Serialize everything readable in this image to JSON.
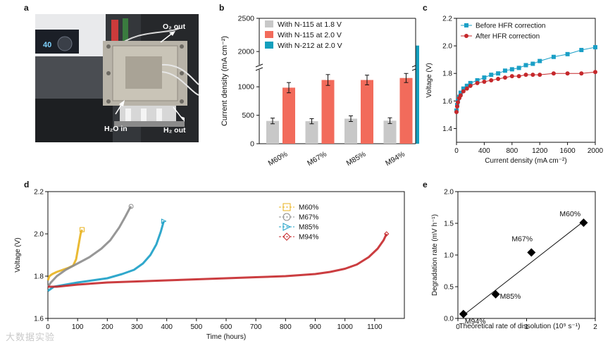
{
  "panels": {
    "a": {
      "letter": "a",
      "labels": {
        "o2": "O₂ out",
        "h2o": "H₂O in",
        "h2": "H₂ out"
      },
      "display": "40"
    },
    "b": {
      "letter": "b"
    },
    "c": {
      "letter": "c"
    },
    "d": {
      "letter": "d"
    },
    "e": {
      "letter": "e"
    }
  },
  "watermark": "大数据实验",
  "chart_data": [
    {
      "panel": "b",
      "type": "bar",
      "categories": [
        "M60%",
        "M67%",
        "M85%",
        "M94%"
      ],
      "series": [
        {
          "name": "With N-115 at 1.8 V",
          "color": "#c8c8c8",
          "values": [
            400,
            395,
            440,
            405
          ],
          "errors": [
            50,
            45,
            50,
            50
          ]
        },
        {
          "name": "With N-115 at 2.0 V",
          "color": "#f26b5b",
          "values": [
            985,
            1120,
            1120,
            1155
          ],
          "errors": [
            90,
            95,
            85,
            80
          ]
        },
        {
          "name": "With N-212 at 2.0 V",
          "color": "#149fbd",
          "values": [
            null,
            null,
            null,
            2090
          ],
          "errors": [
            null,
            null,
            null,
            110
          ]
        }
      ],
      "xlabel": "",
      "ylabel": "Current density (mA cm⁻²)",
      "yticks": [
        0,
        500,
        1000,
        1500,
        2000,
        2500
      ],
      "ylim": [
        0,
        2500
      ],
      "axis_break": [
        1300,
        1800
      ],
      "legend": "top-left"
    },
    {
      "panel": "c",
      "type": "line",
      "xlabel": "Current density (mA cm⁻²)",
      "ylabel": "Voltage (V)",
      "xlim": [
        0,
        2000
      ],
      "ylim": [
        1.3,
        2.2
      ],
      "xticks": [
        0,
        400,
        800,
        1200,
        1600,
        2000
      ],
      "yticks": [
        1.4,
        1.6,
        1.8,
        2.0,
        2.2
      ],
      "legend": "top-left",
      "series": [
        {
          "name": "Before HFR correction",
          "color": "#1a9fc6",
          "marker": "square",
          "x": [
            0,
            10,
            20,
            40,
            60,
            100,
            150,
            200,
            300,
            400,
            500,
            600,
            700,
            800,
            900,
            1000,
            1100,
            1200,
            1400,
            1600,
            1800,
            2000
          ],
          "y": [
            1.53,
            1.57,
            1.6,
            1.63,
            1.66,
            1.69,
            1.71,
            1.73,
            1.75,
            1.77,
            1.79,
            1.8,
            1.82,
            1.83,
            1.84,
            1.86,
            1.87,
            1.89,
            1.92,
            1.94,
            1.97,
            1.99
          ]
        },
        {
          "name": "After HFR correction",
          "color": "#c5282b",
          "marker": "circle",
          "x": [
            0,
            10,
            20,
            40,
            60,
            100,
            150,
            200,
            300,
            400,
            500,
            600,
            700,
            800,
            900,
            1000,
            1100,
            1200,
            1400,
            1600,
            1800,
            2000
          ],
          "y": [
            1.52,
            1.56,
            1.59,
            1.62,
            1.64,
            1.67,
            1.69,
            1.71,
            1.73,
            1.74,
            1.75,
            1.76,
            1.77,
            1.78,
            1.78,
            1.79,
            1.79,
            1.79,
            1.8,
            1.8,
            1.8,
            1.81
          ]
        }
      ]
    },
    {
      "panel": "d",
      "type": "line",
      "xlabel": "Time (hours)",
      "ylabel": "Voltage (V)",
      "xlim": [
        0,
        1200
      ],
      "ylim": [
        1.6,
        2.2
      ],
      "xticks": [
        0,
        100,
        200,
        300,
        400,
        500,
        600,
        700,
        800,
        900,
        1000,
        1100
      ],
      "yticks": [
        1.6,
        1.8,
        2.0,
        2.2
      ],
      "legend": "top-center",
      "series": [
        {
          "name": "M60%",
          "color": "#e8b21e",
          "marker": "square",
          "x": [
            0,
            5,
            15,
            30,
            50,
            70,
            85,
            95,
            100,
            105,
            110,
            115
          ],
          "y": [
            1.78,
            1.8,
            1.81,
            1.82,
            1.83,
            1.84,
            1.85,
            1.88,
            1.92,
            1.96,
            2.0,
            2.02
          ]
        },
        {
          "name": "M67%",
          "color": "#8c8c8c",
          "marker": "circle",
          "x": [
            0,
            10,
            30,
            60,
            100,
            140,
            180,
            210,
            240,
            260,
            275,
            280
          ],
          "y": [
            1.75,
            1.77,
            1.8,
            1.83,
            1.86,
            1.89,
            1.93,
            1.97,
            2.03,
            2.08,
            2.12,
            2.13
          ]
        },
        {
          "name": "M85%",
          "color": "#1a9fc6",
          "marker": "triangle",
          "x": [
            0,
            20,
            60,
            100,
            150,
            200,
            250,
            290,
            320,
            345,
            365,
            380,
            390
          ],
          "y": [
            1.73,
            1.75,
            1.76,
            1.77,
            1.78,
            1.79,
            1.81,
            1.83,
            1.86,
            1.9,
            1.95,
            2.01,
            2.06
          ]
        },
        {
          "name": "M94%",
          "color": "#c5282b",
          "marker": "diamond",
          "x": [
            0,
            30,
            100,
            200,
            300,
            400,
            500,
            600,
            700,
            800,
            900,
            950,
            1000,
            1040,
            1080,
            1110,
            1130,
            1140
          ],
          "y": [
            1.75,
            1.75,
            1.76,
            1.77,
            1.775,
            1.78,
            1.785,
            1.79,
            1.795,
            1.8,
            1.81,
            1.82,
            1.835,
            1.855,
            1.89,
            1.93,
            1.97,
            2.0
          ]
        }
      ]
    },
    {
      "panel": "e",
      "type": "scatter",
      "xlabel": "Theoretical rate of dissolution (10⁹ s⁻¹)",
      "ylabel": "Degradation rate (mV h⁻¹)",
      "xlim": [
        0,
        2
      ],
      "ylim": [
        0,
        2.0
      ],
      "xticks": [
        0,
        1,
        2
      ],
      "yticks": [
        0.0,
        0.5,
        1.0,
        1.5,
        2.0
      ],
      "points": [
        {
          "label": "M60%",
          "x": 1.83,
          "y": 1.51
        },
        {
          "label": "M67%",
          "x": 1.07,
          "y": 1.04
        },
        {
          "label": "M85%",
          "x": 0.55,
          "y": 0.38
        },
        {
          "label": "M94%",
          "x": 0.08,
          "y": 0.07
        }
      ],
      "fit_line": {
        "x": [
          0.08,
          1.83
        ],
        "y": [
          0.05,
          1.53
        ]
      }
    }
  ]
}
